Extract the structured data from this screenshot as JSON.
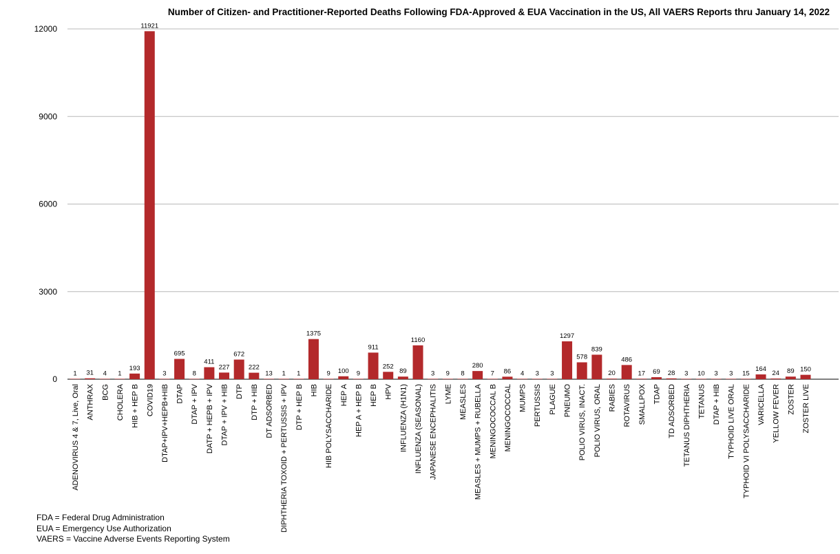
{
  "chart_data": {
    "type": "bar",
    "title": "Number of Citizen- and Practitioner-Reported Deaths Following FDA-Approved & EUA Vaccination in the US, All VAERS Reports thru January 14, 2022",
    "xlabel": "",
    "ylabel": "",
    "ylim": [
      0,
      12000
    ],
    "yticks": [
      0,
      3000,
      6000,
      9000,
      12000
    ],
    "grid": true,
    "legend": "none",
    "bar_color": "#b3292b",
    "categories": [
      "ADENOVIRUS 4 & 7, Live, Oral",
      "ANTHRAX",
      "BCG",
      "CHOLERA",
      "HIB + HEP B",
      "COVID19",
      "DTAP+IPV+HEPB+HIB",
      "DTAP",
      "DTAP + IPV",
      "DATP + HEPB + IPV",
      "DTAP + IPV + HIB",
      "DTP",
      "DTP + HIB",
      "DT ADSORBED",
      "DIPHTHERIA TOXOID + PERTUSSIS + IPV",
      "DTP + HEP B",
      "HIB",
      "HIB POLYSACCHARIDE",
      "HEP A",
      "HEP A + HEP B",
      "HEP B",
      "HPV",
      "INFLUENZA (H1N1)",
      "INFLUENZA (SEASONAL)",
      "JAPANESE ENCEPHALITIS",
      "LYME",
      "MEASLES",
      "MEASLES + MUMPS + RUBELLA",
      "MENINGOCOCCAL B",
      "MENINGOCOCCAL",
      "MUMPS",
      "PERTUSSIS",
      "PLAGUE",
      "PNEUMO",
      "POLIO VIRUS, INACT.",
      "POLIO VIRUS, ORAL",
      "RABIES",
      "ROTAVIRUS",
      "SMALLPOX",
      "TDAP",
      "TD ADSORBED",
      "TETANUS DIPHTHERIA",
      "TETANUS",
      "DTAP + HIB",
      "TYPHOID LIVE ORAL",
      "TYPHOID VI POLYSACCHARIDE",
      "VARICELLA",
      "YELLOW FEVER",
      "ZOSTER",
      "ZOSTER LIVE"
    ],
    "values": [
      1,
      31,
      4,
      1,
      193,
      11921,
      3,
      695,
      8,
      411,
      227,
      672,
      222,
      13,
      1,
      1,
      1375,
      9,
      100,
      9,
      911,
      252,
      89,
      1160,
      3,
      9,
      8,
      280,
      7,
      86,
      4,
      3,
      3,
      1297,
      578,
      839,
      20,
      486,
      17,
      69,
      28,
      3,
      10,
      3,
      3,
      15,
      164,
      24,
      89,
      150
    ]
  },
  "footnotes": [
    "FDA = Federal Drug Administration",
    "EUA = Emergency Use Authorization",
    "VAERS = Vaccine Adverse Events Reporting System"
  ]
}
